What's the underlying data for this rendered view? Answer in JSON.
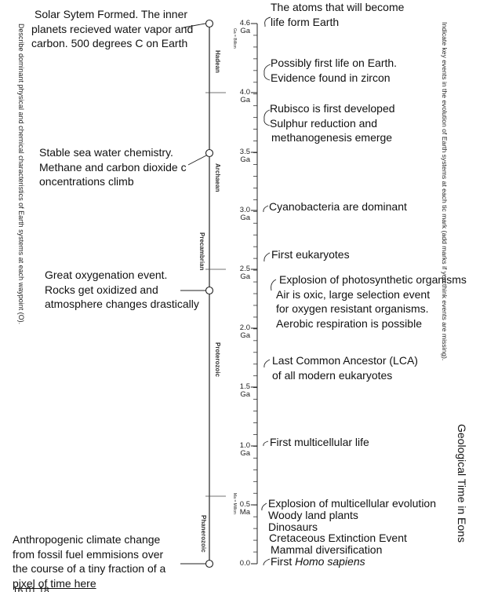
{
  "title": "Geological Time in Eons",
  "left_instruction": "Describe dominant physical and chemical characteristics of Earth systems at each waypoint (O).",
  "right_instruction": "Indicate key events in the evolution of Earth systems at each tic mark (add marks if you think events are missing).",
  "eons": [
    "Hadean",
    "Archaean",
    "Precambrian",
    "Proterozoic",
    "Phanerozoic"
  ],
  "unit_small_top": "Ga = Billion",
  "unit_small_bottom": "Ma = Million",
  "ticks": [
    {
      "value": "4.6",
      "unit": "Ga"
    },
    {
      "value": "4.0",
      "unit": "Ga"
    },
    {
      "value": "3.5",
      "unit": "Ga"
    },
    {
      "value": "3.0",
      "unit": "Ga"
    },
    {
      "value": "2.5",
      "unit": "Ga"
    },
    {
      "value": "2.0",
      "unit": "Ga"
    },
    {
      "value": "1.5",
      "unit": "Ga"
    },
    {
      "value": "1.0",
      "unit": "Ga"
    },
    {
      "value": "0.5",
      "unit": "Ma"
    },
    {
      "value": "0.0",
      "unit": ""
    }
  ],
  "waypoint_notes": [
    [
      "Solar Sytem Formed. The inner",
      "planets recieved water vapor and",
      "carbon. 500 degrees C on Earth"
    ],
    [
      "Stable sea water chemistry.",
      "Methane and carbon dioxide c",
      "oncentrations climb"
    ],
    [
      "Great oxygenation event.",
      "Rocks get oxidized and",
      "atmosphere changes drastically"
    ],
    [
      "Anthropogenic climate change",
      "from fossil fuel emmisions over",
      "the course of a tiny fraction of a",
      "pixel of time here"
    ]
  ],
  "events": [
    [
      "The atoms that will become",
      "life form Earth"
    ],
    [
      "Possibly first life on Earth.",
      "Evidence found in zircon"
    ],
    [
      "Rubisco is first developed",
      "Sulphur reduction and",
      "methanogenesis emerge"
    ],
    [
      "Cyanobacteria are dominant"
    ],
    [
      "First eukaryotes"
    ],
    [
      "Explosion of photosynthetic organisms",
      "Air is oxic, large selection event",
      "for oxygen resistant organisms.",
      "Aerobic respiration is possible"
    ],
    [
      "Last Common Ancestor (LCA)",
      "of all modern eukaryotes"
    ],
    [
      "First multicellular life"
    ],
    [
      "Explosion of multicellular evolution",
      "Woody land plants",
      "Dinosaurs",
      "Cretaceous Extinction Event",
      "Mammal diversification",
      "First Homo sapiens"
    ]
  ],
  "footer_date": "16.01.18"
}
